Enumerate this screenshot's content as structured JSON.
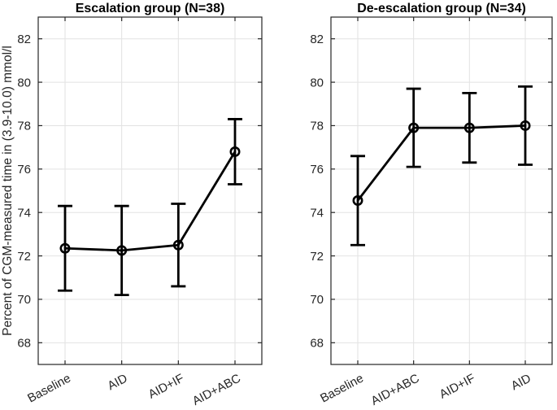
{
  "figure": {
    "background_color": "#ffffff",
    "axis_color": "#262626",
    "grid_color": "#e2e2e2",
    "data_color": "#000000",
    "ylabel": "Percent of CGM-measured time in (3.9-10.0) mmol/l"
  },
  "chart_data": [
    {
      "type": "line",
      "subtype": "errorbar",
      "title": "Escalation group (N=38)",
      "categories": [
        "Baseline",
        "AID",
        "AID+IF",
        "AID+ABC"
      ],
      "series": [
        {
          "name": "mean",
          "values": [
            72.35,
            72.25,
            72.5,
            76.8
          ]
        }
      ],
      "error_low": [
        70.4,
        70.2,
        70.6,
        75.3
      ],
      "error_high": [
        74.3,
        74.3,
        74.4,
        78.3
      ],
      "xlabel": "",
      "ylabel": "Percent of CGM-measured time in (3.9-10.0) mmol/l",
      "ylim": [
        67,
        83
      ],
      "yticks": [
        68,
        70,
        72,
        74,
        76,
        78,
        80,
        82
      ],
      "grid": true,
      "legend": ""
    },
    {
      "type": "line",
      "subtype": "errorbar",
      "title": "De-escalation group (N=34)",
      "categories": [
        "Baseline",
        "AID+ABC",
        "AID+IF",
        "AID"
      ],
      "series": [
        {
          "name": "mean",
          "values": [
            74.55,
            77.9,
            77.9,
            78.0
          ]
        }
      ],
      "error_low": [
        72.5,
        76.1,
        76.3,
        76.2
      ],
      "error_high": [
        76.6,
        79.7,
        79.5,
        79.8
      ],
      "xlabel": "",
      "ylabel": "",
      "ylim": [
        67,
        83
      ],
      "yticks": [
        68,
        70,
        72,
        74,
        76,
        78,
        80,
        82
      ],
      "grid": true,
      "legend": ""
    }
  ]
}
